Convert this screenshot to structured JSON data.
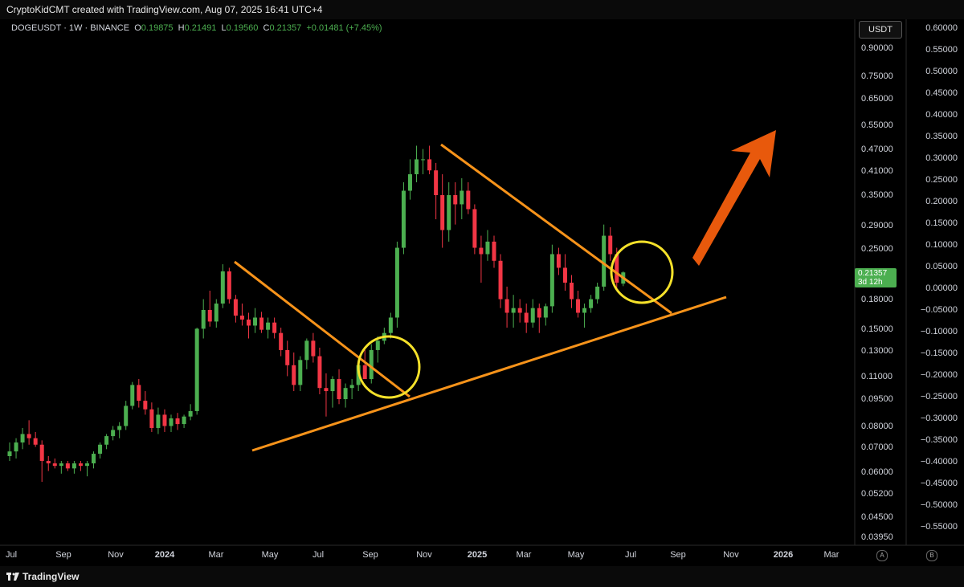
{
  "credit": "CryptoKidCMT created with TradingView.com, Aug 07, 2025 16:41 UTC+4",
  "legend": {
    "symbol": "DOGEUSDT · 1W · BINANCE",
    "o_label": "O",
    "o": "0.19875",
    "h_label": "H",
    "h": "0.21491",
    "l_label": "L",
    "l": "0.19560",
    "c_label": "C",
    "c": "0.21357",
    "change": "+0.01481 (+7.45%)"
  },
  "currency": "USDT",
  "last_price": {
    "value": "0.21357",
    "countdown": "3d 12h"
  },
  "footer": {
    "brand": "TradingView"
  },
  "scale_buttons": [
    "A",
    "B"
  ],
  "colors": {
    "up": "#4caf50",
    "down": "#f23645",
    "trendline": "#f7931a",
    "circle": "#f5e12a",
    "arrow": "#e8590c"
  },
  "chart_data": {
    "type": "candlestick",
    "title": "",
    "x_axis_labels": [
      "Jul",
      "Sep",
      "Nov",
      "2024",
      "Mar",
      "May",
      "Jul",
      "Sep",
      "Nov",
      "2025",
      "Mar",
      "May",
      "Jul",
      "Sep",
      "Nov",
      "2026",
      "Mar"
    ],
    "log_scale": true,
    "price_ticks": [
      0.9,
      0.75,
      0.65,
      0.55,
      0.47,
      0.41,
      0.35,
      0.29,
      0.25,
      0.18,
      0.15,
      0.13,
      0.11,
      0.095,
      0.08,
      0.07,
      0.06,
      0.052,
      0.045,
      0.0395
    ],
    "price_tick_labels": [
      "0.90000",
      "0.75000",
      "0.65000",
      "0.55000",
      "0.47000",
      "0.41000",
      "0.35000",
      "0.29000",
      "0.25000",
      "0.18000",
      "0.15000",
      "0.13000",
      "0.11000",
      "0.09500",
      "0.08000",
      "0.07000",
      "0.06000",
      "0.05200",
      "0.04500",
      "0.03950"
    ],
    "secondary_ticks": [
      "0.60000",
      "0.55000",
      "0.50000",
      "0.45000",
      "0.40000",
      "0.35000",
      "0.30000",
      "0.25000",
      "0.20000",
      "0.15000",
      "0.10000",
      "0.05000",
      "0.00000",
      "−0.05000",
      "−0.10000",
      "−0.15000",
      "−0.20000",
      "−0.25000",
      "−0.30000",
      "−0.35000",
      "−0.40000",
      "−0.45000",
      "−0.50000",
      "−0.55000"
    ],
    "candles": [
      [
        0.066,
        0.072,
        0.064,
        0.068
      ],
      [
        0.068,
        0.074,
        0.065,
        0.072
      ],
      [
        0.072,
        0.079,
        0.069,
        0.076
      ],
      [
        0.076,
        0.083,
        0.071,
        0.074
      ],
      [
        0.074,
        0.077,
        0.07,
        0.071
      ],
      [
        0.071,
        0.073,
        0.056,
        0.064
      ],
      [
        0.064,
        0.066,
        0.06,
        0.063
      ],
      [
        0.063,
        0.065,
        0.061,
        0.062
      ],
      [
        0.062,
        0.064,
        0.059,
        0.063
      ],
      [
        0.063,
        0.064,
        0.06,
        0.061
      ],
      [
        0.061,
        0.064,
        0.059,
        0.063
      ],
      [
        0.063,
        0.064,
        0.06,
        0.062
      ],
      [
        0.062,
        0.064,
        0.058,
        0.063
      ],
      [
        0.063,
        0.068,
        0.061,
        0.067
      ],
      [
        0.067,
        0.072,
        0.065,
        0.071
      ],
      [
        0.071,
        0.076,
        0.069,
        0.075
      ],
      [
        0.075,
        0.08,
        0.073,
        0.078
      ],
      [
        0.078,
        0.082,
        0.074,
        0.08
      ],
      [
        0.08,
        0.094,
        0.078,
        0.091
      ],
      [
        0.091,
        0.106,
        0.089,
        0.104
      ],
      [
        0.104,
        0.108,
        0.09,
        0.094
      ],
      [
        0.094,
        0.1,
        0.086,
        0.089
      ],
      [
        0.089,
        0.093,
        0.077,
        0.079
      ],
      [
        0.079,
        0.09,
        0.076,
        0.086
      ],
      [
        0.086,
        0.089,
        0.077,
        0.08
      ],
      [
        0.08,
        0.086,
        0.077,
        0.084
      ],
      [
        0.084,
        0.087,
        0.078,
        0.081
      ],
      [
        0.081,
        0.086,
        0.079,
        0.085
      ],
      [
        0.085,
        0.092,
        0.083,
        0.088
      ],
      [
        0.088,
        0.15,
        0.086,
        0.149
      ],
      [
        0.149,
        0.18,
        0.14,
        0.168
      ],
      [
        0.168,
        0.19,
        0.151,
        0.156
      ],
      [
        0.156,
        0.18,
        0.15,
        0.175
      ],
      [
        0.175,
        0.225,
        0.17,
        0.215
      ],
      [
        0.215,
        0.22,
        0.175,
        0.18
      ],
      [
        0.18,
        0.185,
        0.155,
        0.162
      ],
      [
        0.162,
        0.175,
        0.152,
        0.158
      ],
      [
        0.158,
        0.165,
        0.14,
        0.152
      ],
      [
        0.152,
        0.17,
        0.145,
        0.16
      ],
      [
        0.16,
        0.166,
        0.145,
        0.148
      ],
      [
        0.148,
        0.16,
        0.14,
        0.155
      ],
      [
        0.155,
        0.16,
        0.14,
        0.145
      ],
      [
        0.145,
        0.15,
        0.125,
        0.13
      ],
      [
        0.13,
        0.138,
        0.11,
        0.118
      ],
      [
        0.118,
        0.128,
        0.1,
        0.104
      ],
      [
        0.104,
        0.125,
        0.1,
        0.122
      ],
      [
        0.122,
        0.14,
        0.115,
        0.138
      ],
      [
        0.138,
        0.145,
        0.12,
        0.125
      ],
      [
        0.125,
        0.132,
        0.098,
        0.102
      ],
      [
        0.102,
        0.112,
        0.085,
        0.1
      ],
      [
        0.1,
        0.11,
        0.09,
        0.108
      ],
      [
        0.108,
        0.115,
        0.092,
        0.095
      ],
      [
        0.095,
        0.105,
        0.09,
        0.102
      ],
      [
        0.102,
        0.108,
        0.095,
        0.104
      ],
      [
        0.104,
        0.122,
        0.1,
        0.118
      ],
      [
        0.118,
        0.13,
        0.11,
        0.108
      ],
      [
        0.108,
        0.135,
        0.105,
        0.13
      ],
      [
        0.13,
        0.142,
        0.12,
        0.138
      ],
      [
        0.138,
        0.15,
        0.135,
        0.145
      ],
      [
        0.145,
        0.165,
        0.14,
        0.16
      ],
      [
        0.16,
        0.26,
        0.15,
        0.25
      ],
      [
        0.25,
        0.38,
        0.24,
        0.36
      ],
      [
        0.36,
        0.44,
        0.34,
        0.4
      ],
      [
        0.4,
        0.48,
        0.38,
        0.44
      ],
      [
        0.44,
        0.47,
        0.4,
        0.44
      ],
      [
        0.44,
        0.48,
        0.4,
        0.41
      ],
      [
        0.41,
        0.43,
        0.3,
        0.35
      ],
      [
        0.35,
        0.4,
        0.25,
        0.28
      ],
      [
        0.28,
        0.38,
        0.26,
        0.35
      ],
      [
        0.35,
        0.38,
        0.29,
        0.33
      ],
      [
        0.33,
        0.39,
        0.3,
        0.36
      ],
      [
        0.36,
        0.38,
        0.31,
        0.32
      ],
      [
        0.32,
        0.33,
        0.24,
        0.25
      ],
      [
        0.25,
        0.27,
        0.2,
        0.24
      ],
      [
        0.24,
        0.28,
        0.23,
        0.26
      ],
      [
        0.26,
        0.27,
        0.22,
        0.23
      ],
      [
        0.23,
        0.24,
        0.17,
        0.18
      ],
      [
        0.18,
        0.195,
        0.15,
        0.165
      ],
      [
        0.165,
        0.185,
        0.15,
        0.17
      ],
      [
        0.17,
        0.18,
        0.155,
        0.165
      ],
      [
        0.165,
        0.175,
        0.145,
        0.155
      ],
      [
        0.155,
        0.18,
        0.15,
        0.17
      ],
      [
        0.17,
        0.175,
        0.145,
        0.16
      ],
      [
        0.16,
        0.175,
        0.152,
        0.172
      ],
      [
        0.172,
        0.255,
        0.165,
        0.24
      ],
      [
        0.24,
        0.25,
        0.21,
        0.22
      ],
      [
        0.22,
        0.24,
        0.19,
        0.2
      ],
      [
        0.2,
        0.21,
        0.17,
        0.18
      ],
      [
        0.18,
        0.19,
        0.16,
        0.165
      ],
      [
        0.165,
        0.175,
        0.15,
        0.17
      ],
      [
        0.17,
        0.185,
        0.165,
        0.18
      ],
      [
        0.18,
        0.2,
        0.175,
        0.195
      ],
      [
        0.195,
        0.29,
        0.19,
        0.27
      ],
      [
        0.27,
        0.285,
        0.23,
        0.24
      ],
      [
        0.24,
        0.25,
        0.19,
        0.2
      ],
      [
        0.19875,
        0.21491,
        0.1956,
        0.21357
      ]
    ]
  }
}
